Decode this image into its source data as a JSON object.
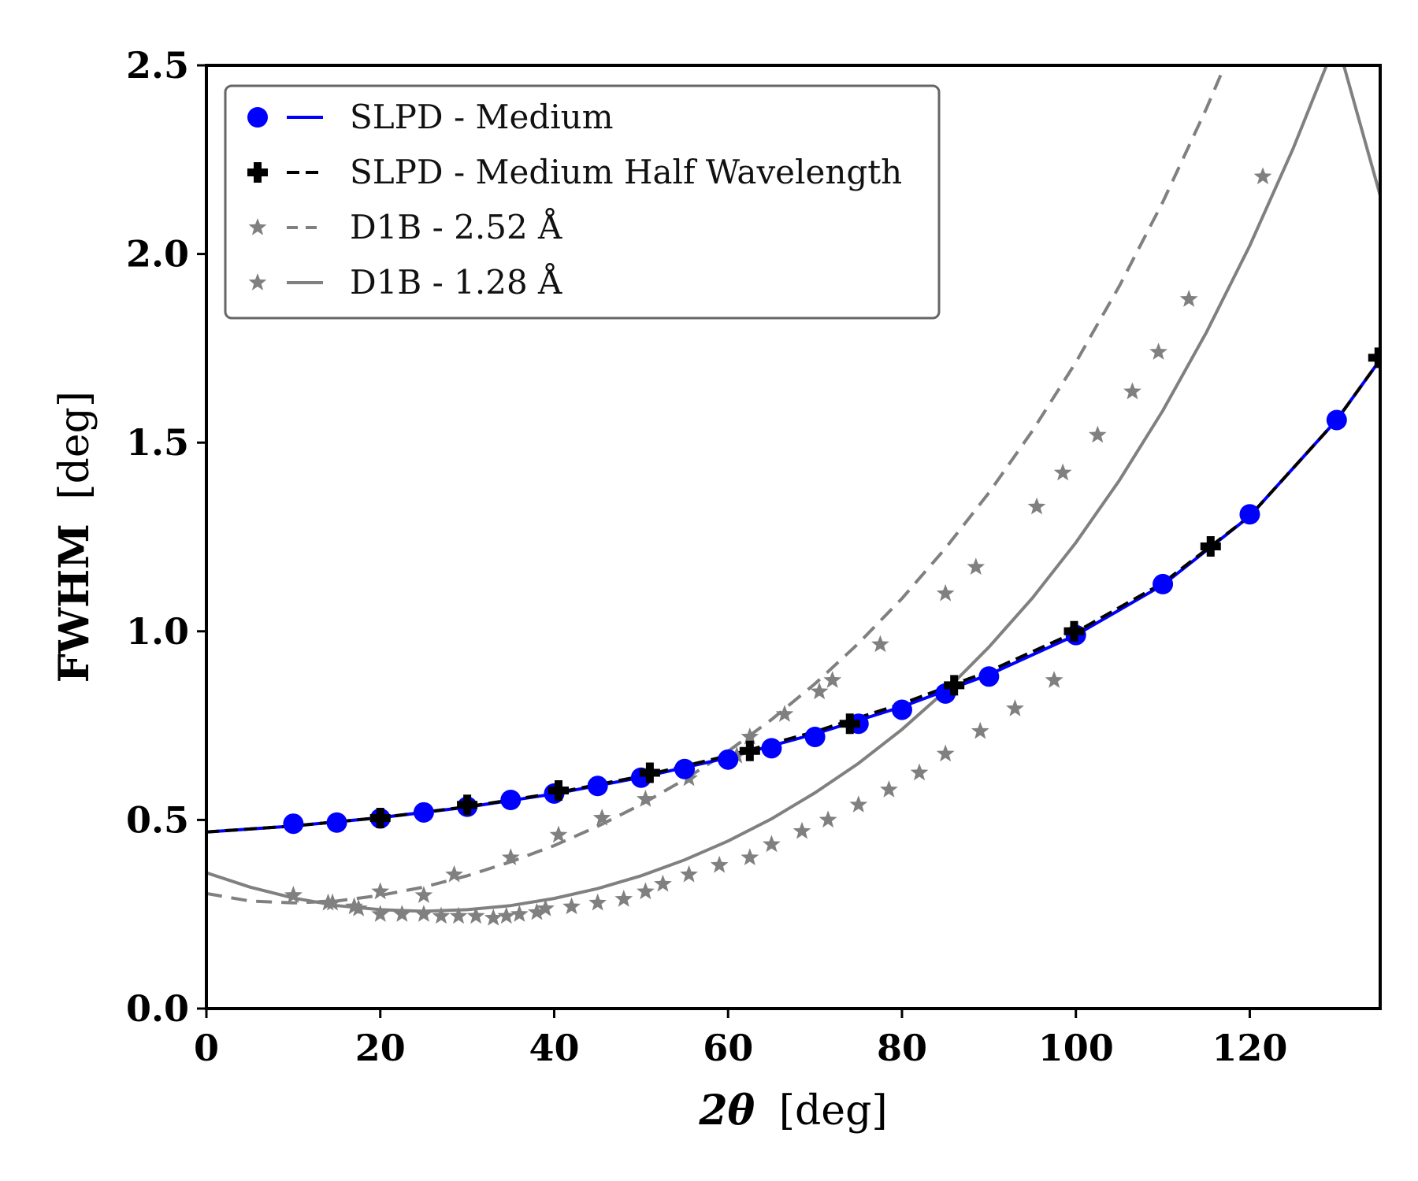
{
  "chart_data": {
    "type": "scatter",
    "xlabel": "2θ [deg]",
    "xlabel_parts": {
      "symbol": "2θ",
      "unit": "[deg]"
    },
    "ylabel": "FWHM [deg]",
    "ylabel_parts": {
      "symbol": "FWHM",
      "unit": "[deg]"
    },
    "xlim": [
      0,
      135
    ],
    "ylim": [
      0,
      2.5
    ],
    "xticks": [
      0,
      20,
      40,
      60,
      80,
      100,
      120
    ],
    "yticks": [
      0.0,
      0.5,
      1.0,
      1.5,
      2.0,
      2.5
    ],
    "xtick_labels": [
      "0",
      "20",
      "40",
      "60",
      "80",
      "100",
      "120"
    ],
    "ytick_labels": [
      "0.0",
      "0.5",
      "1.0",
      "1.5",
      "2.0",
      "2.5"
    ],
    "grid": false,
    "legend_position": "top-left",
    "series": [
      {
        "name": "SLPD - Medium",
        "color": "#0000ff",
        "marker": "circle",
        "line_style": "solid",
        "points": [
          [
            10,
            0.49
          ],
          [
            15,
            0.493
          ],
          [
            20,
            0.504
          ],
          [
            25,
            0.52
          ],
          [
            30,
            0.535
          ],
          [
            35,
            0.553
          ],
          [
            40,
            0.57
          ],
          [
            45,
            0.59
          ],
          [
            50,
            0.612
          ],
          [
            55,
            0.635
          ],
          [
            60,
            0.66
          ],
          [
            65,
            0.69
          ],
          [
            70,
            0.72
          ],
          [
            75,
            0.755
          ],
          [
            80,
            0.792
          ],
          [
            85,
            0.835
          ],
          [
            90,
            0.88
          ],
          [
            100,
            0.99
          ],
          [
            110,
            1.125
          ],
          [
            120,
            1.31
          ],
          [
            130,
            1.56
          ]
        ],
        "fit": [
          [
            0,
            0.468
          ],
          [
            10,
            0.484
          ],
          [
            20,
            0.506
          ],
          [
            30,
            0.534
          ],
          [
            40,
            0.569
          ],
          [
            50,
            0.613
          ],
          [
            60,
            0.665
          ],
          [
            70,
            0.728
          ],
          [
            80,
            0.8
          ],
          [
            90,
            0.885
          ],
          [
            100,
            0.99
          ],
          [
            110,
            1.123
          ],
          [
            120,
            1.305
          ],
          [
            130,
            1.56
          ],
          [
            135,
            1.72
          ]
        ]
      },
      {
        "name": "SLPD - Medium Half Wavelength",
        "color": "#000000",
        "marker": "plus",
        "line_style": "dashed",
        "points": [
          [
            20,
            0.505
          ],
          [
            30,
            0.54
          ],
          [
            40.5,
            0.578
          ],
          [
            51,
            0.625
          ],
          [
            62.5,
            0.683
          ],
          [
            74,
            0.755
          ],
          [
            86,
            0.857
          ],
          [
            99.8,
            1.0
          ],
          [
            115.5,
            1.225
          ],
          [
            134.8,
            1.725
          ]
        ],
        "fit": [
          [
            0,
            0.468
          ],
          [
            10,
            0.484
          ],
          [
            20,
            0.506
          ],
          [
            30,
            0.535
          ],
          [
            40,
            0.571
          ],
          [
            50,
            0.616
          ],
          [
            60,
            0.67
          ],
          [
            70,
            0.734
          ],
          [
            80,
            0.808
          ],
          [
            90,
            0.894
          ],
          [
            100,
            0.998
          ],
          [
            110,
            1.128
          ],
          [
            120,
            1.305
          ],
          [
            130,
            1.56
          ],
          [
            135,
            1.72
          ]
        ]
      },
      {
        "name": "D1B - 2.52 Å",
        "color": "#808080",
        "marker": "star",
        "line_style": "dashed",
        "points": [
          [
            10,
            0.3
          ],
          [
            14,
            0.28
          ],
          [
            17,
            0.27
          ],
          [
            20,
            0.31
          ],
          [
            25,
            0.3
          ],
          [
            28.5,
            0.355
          ],
          [
            35,
            0.4
          ],
          [
            40.5,
            0.46
          ],
          [
            45.5,
            0.505
          ],
          [
            50.5,
            0.555
          ],
          [
            55.5,
            0.61
          ],
          [
            61,
            0.67
          ],
          [
            62.5,
            0.72
          ],
          [
            66.5,
            0.78
          ],
          [
            70.5,
            0.84
          ],
          [
            72,
            0.87
          ],
          [
            77.5,
            0.965
          ],
          [
            85,
            1.1
          ],
          [
            88.5,
            1.17
          ],
          [
            95.5,
            1.33
          ],
          [
            98.5,
            1.42
          ],
          [
            102.5,
            1.52
          ],
          [
            106.5,
            1.635
          ],
          [
            109.5,
            1.74
          ],
          [
            113,
            1.88
          ],
          [
            121.5,
            2.205
          ]
        ],
        "fit": [
          [
            0,
            0.305
          ],
          [
            5,
            0.285
          ],
          [
            10,
            0.28
          ],
          [
            15,
            0.285
          ],
          [
            20,
            0.3
          ],
          [
            25,
            0.322
          ],
          [
            30,
            0.352
          ],
          [
            35,
            0.389
          ],
          [
            40,
            0.432
          ],
          [
            45,
            0.483
          ],
          [
            50,
            0.541
          ],
          [
            55,
            0.607
          ],
          [
            60,
            0.682
          ],
          [
            65,
            0.766
          ],
          [
            70,
            0.861
          ],
          [
            75,
            0.968
          ],
          [
            80,
            1.087
          ],
          [
            85,
            1.22
          ],
          [
            90,
            1.367
          ],
          [
            95,
            1.531
          ],
          [
            100,
            1.713
          ],
          [
            105,
            1.915
          ],
          [
            110,
            2.138
          ],
          [
            115,
            2.385
          ],
          [
            117.5,
            2.52
          ]
        ]
      },
      {
        "name": "D1B - 1.28 Å",
        "color": "#808080",
        "marker": "star",
        "line_style": "solid",
        "points": [
          [
            10,
            0.3
          ],
          [
            14.5,
            0.28
          ],
          [
            17.5,
            0.265
          ],
          [
            20,
            0.25
          ],
          [
            22.5,
            0.25
          ],
          [
            25,
            0.25
          ],
          [
            27,
            0.245
          ],
          [
            29,
            0.245
          ],
          [
            31,
            0.245
          ],
          [
            33,
            0.24
          ],
          [
            34.5,
            0.245
          ],
          [
            36,
            0.25
          ],
          [
            38,
            0.255
          ],
          [
            39,
            0.265
          ],
          [
            42,
            0.27
          ],
          [
            45,
            0.28
          ],
          [
            48,
            0.29
          ],
          [
            50.5,
            0.31
          ],
          [
            52.5,
            0.33
          ],
          [
            55.5,
            0.355
          ],
          [
            59,
            0.38
          ],
          [
            62.5,
            0.4
          ],
          [
            65,
            0.435
          ],
          [
            68.5,
            0.47
          ],
          [
            71.5,
            0.5
          ],
          [
            75,
            0.54
          ],
          [
            78.5,
            0.58
          ],
          [
            82,
            0.625
          ],
          [
            85,
            0.675
          ],
          [
            89,
            0.735
          ],
          [
            93,
            0.795
          ],
          [
            97.5,
            0.87
          ]
        ],
        "fit": [
          [
            0,
            0.36
          ],
          [
            5,
            0.322
          ],
          [
            10,
            0.293
          ],
          [
            15,
            0.273
          ],
          [
            20,
            0.262
          ],
          [
            25,
            0.258
          ],
          [
            30,
            0.262
          ],
          [
            35,
            0.273
          ],
          [
            40,
            0.292
          ],
          [
            45,
            0.318
          ],
          [
            50,
            0.352
          ],
          [
            55,
            0.394
          ],
          [
            60,
            0.444
          ],
          [
            65,
            0.503
          ],
          [
            70,
            0.572
          ],
          [
            75,
            0.65
          ],
          [
            80,
            0.74
          ],
          [
            85,
            0.842
          ],
          [
            90,
            0.958
          ],
          [
            95,
            1.088
          ],
          [
            100,
            1.235
          ],
          [
            105,
            1.4
          ],
          [
            110,
            1.585
          ],
          [
            115,
            1.792
          ],
          [
            120,
            2.022
          ],
          [
            125,
            2.28
          ],
          [
            130,
            2.567
          ],
          [
            135,
            2.155
          ]
        ]
      }
    ]
  }
}
